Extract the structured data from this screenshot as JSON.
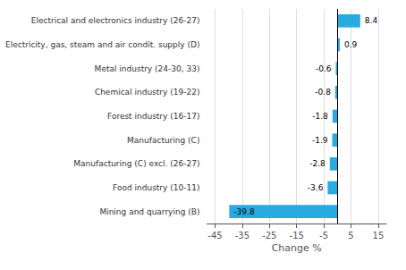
{
  "chart_data": {
    "type": "bar",
    "orientation": "horizontal",
    "categories": [
      "Mining and quarrying (B)",
      "Food industry (10-11)",
      "Manufacturing (C) excl. (26-27)",
      "Manufacturing (C)",
      "Forest industry (16-17)",
      "Chemical industry (19-22)",
      "Metal industry (24-30, 33)",
      "Electricity, gas, steam and air condit. supply (D)",
      "Electrical and electronics industry (26-27)"
    ],
    "values": [
      -39.8,
      -3.6,
      -2.8,
      -1.9,
      -1.8,
      -0.8,
      -0.6,
      0.9,
      8.4
    ],
    "color": "#29abe2",
    "xlabel": "Change %",
    "xlim": [
      -48,
      18
    ],
    "xticks": [
      -45,
      -35,
      -25,
      -15,
      -5,
      5,
      15
    ],
    "grid": true,
    "data_labels": true
  }
}
